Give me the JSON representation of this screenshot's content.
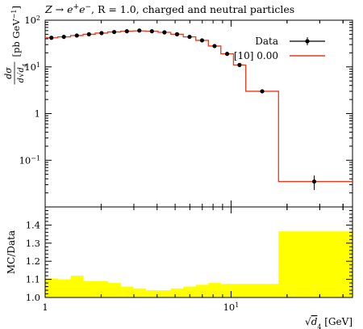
{
  "chart_data": [
    {
      "type": "line",
      "title": "Z → e⁺e⁻, R = 1.0, charged and neutral particles",
      "title_parts": {
        "pre": "Z → e",
        "sup1": "+",
        "mid": "e",
        "sup2": "−",
        "post": ", R = 1.0, charged and neutral particles"
      },
      "ylabel": "dσ / d√d4 [pb GeV⁻¹]",
      "ylabel_parts": {
        "frac_num": "dσ",
        "frac_den": "d√d",
        "frac_sub": "4",
        "unit": "[pb GeV",
        "unit_sup": "−1",
        "unit_end": "]"
      },
      "xlim": [
        1,
        45
      ],
      "ylim": [
        0.01,
        100
      ],
      "scale": {
        "x": "log",
        "y": "log"
      },
      "y_ticks": [
        {
          "value": 100,
          "base": "10",
          "exp": "2"
        },
        {
          "value": 10,
          "base": "10",
          "exp": "1"
        },
        {
          "value": 1,
          "base": "1",
          "exp": ""
        },
        {
          "value": 0.1,
          "base": "10",
          "exp": "−1"
        }
      ],
      "legend": {
        "position": "top-right",
        "entries": [
          {
            "label": "Data",
            "color": "#000000",
            "marker": "circle"
          },
          {
            "label": "[10] 0.00",
            "color": "#e8381c",
            "marker": "line"
          }
        ]
      },
      "bin_edges": [
        1.0,
        1.17,
        1.37,
        1.6,
        1.86,
        2.17,
        2.55,
        2.97,
        3.47,
        4.05,
        4.74,
        5.53,
        6.46,
        7.55,
        8.81,
        10.3,
        12.0,
        18.0,
        45.0
      ],
      "series": [
        {
          "name": "Data",
          "color": "#000000",
          "x": [
            1.08,
            1.26,
            1.48,
            1.72,
            2.01,
            2.35,
            2.75,
            3.21,
            3.75,
            4.38,
            5.12,
            5.98,
            6.98,
            8.15,
            9.52,
            11.1,
            14.7,
            28.0
          ],
          "y": [
            42,
            44,
            47,
            50,
            53,
            56,
            58,
            60,
            58,
            55,
            50,
            44,
            37,
            28,
            19,
            11,
            3.0,
            0.035
          ],
          "yerr": [
            1,
            1,
            1,
            1,
            1,
            1,
            1,
            1,
            1,
            1,
            1,
            1,
            1,
            1,
            1,
            0.5,
            0.2,
            0.012
          ]
        },
        {
          "name": "[10] 0.00",
          "color": "#e8381c",
          "y": [
            42,
            44,
            47,
            50,
            53,
            56,
            58,
            59,
            58,
            55,
            50,
            44,
            37,
            28,
            19,
            11,
            3.0,
            0.035
          ]
        }
      ]
    },
    {
      "type": "area",
      "ylabel": "MC/Data",
      "xlabel": "√d4 [GeV]",
      "xlabel_parts": {
        "root": "√",
        "var": "d",
        "sub": "4",
        "unit": " [GeV]"
      },
      "xlim": [
        1,
        45
      ],
      "ylim": [
        1.0,
        1.5
      ],
      "scale": {
        "x": "log",
        "y": "linear"
      },
      "y_ticks": [
        "1.0",
        "1.1",
        "1.2",
        "1.3",
        "1.4"
      ],
      "x_ticks": [
        {
          "value": 1,
          "base": "1",
          "exp": ""
        },
        {
          "value": 10,
          "base": "10",
          "exp": "1"
        }
      ],
      "band_color": "#ffff00",
      "bin_edges": [
        1.0,
        1.17,
        1.37,
        1.6,
        1.86,
        2.17,
        2.55,
        2.97,
        3.47,
        4.05,
        4.74,
        5.53,
        6.46,
        7.55,
        8.81,
        10.3,
        12.0,
        18.0,
        45.0
      ],
      "band_upper": [
        1.105,
        1.1,
        1.12,
        1.09,
        1.09,
        1.08,
        1.06,
        1.05,
        1.04,
        1.04,
        1.05,
        1.06,
        1.07,
        1.08,
        1.075,
        1.075,
        1.075,
        1.365
      ],
      "band_lower": [
        1.0,
        1.0,
        1.0,
        1.0,
        1.0,
        1.0,
        1.0,
        1.0,
        1.0,
        1.0,
        1.0,
        1.0,
        1.0,
        1.0,
        1.0,
        1.0,
        1.0,
        1.0
      ]
    }
  ]
}
